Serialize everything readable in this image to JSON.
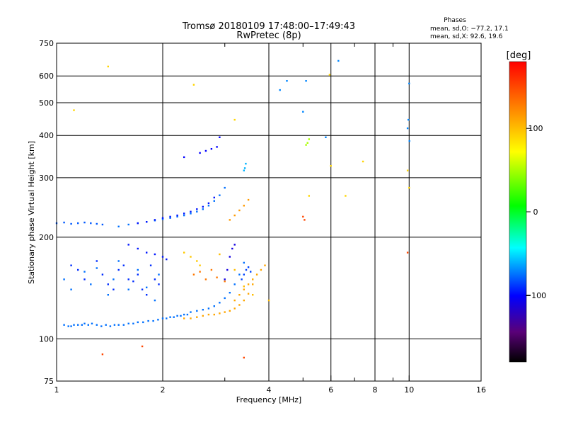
{
  "chart_data": {
    "type": "scatter",
    "title": "Tromsø 20180109 17:48:00–17:49:43",
    "subtitle": "RwPretec (8p)",
    "xlabel": "Frequency [MHz]",
    "ylabel": "Stationary phase Virtual Height [km]",
    "x_scale": "log",
    "y_scale": "log",
    "xlim": [
      1,
      16
    ],
    "ylim": [
      75,
      750
    ],
    "x_ticks": [
      1,
      2,
      4,
      6,
      8,
      10,
      16
    ],
    "x_minor_ticks": [
      3,
      5,
      7,
      9
    ],
    "y_ticks": [
      75,
      100,
      200,
      300,
      400,
      500,
      600,
      750
    ],
    "grid": true,
    "phases_info": {
      "title": "Phases",
      "line_o": "mean, sd,O: −77.2, 17.1",
      "line_x": "mean, sd,X:  92.6, 19.6"
    },
    "colorbar": {
      "label": "[deg]",
      "range": [
        -180,
        180
      ],
      "ticks": [
        100,
        0,
        -100
      ]
    },
    "series": [
      {
        "x": [
          1.05,
          1.08,
          1.1,
          1.12,
          1.15,
          1.18,
          1.2,
          1.23,
          1.26,
          1.3,
          1.34,
          1.38,
          1.42,
          1.46,
          1.5,
          1.55,
          1.6,
          1.65,
          1.7,
          1.76,
          1.82,
          1.88,
          1.94,
          2.0,
          2.05,
          2.1,
          2.15,
          2.2,
          2.25,
          2.3,
          2.35
        ],
        "y": [
          110,
          109,
          109,
          110,
          110,
          110,
          111,
          110,
          111,
          110,
          109,
          110,
          109,
          110,
          110,
          110,
          111,
          111,
          112,
          112,
          113,
          113,
          114,
          115,
          115,
          116,
          116,
          117,
          117,
          118,
          118
        ],
        "phase": -75
      },
      {
        "x": [
          2.4,
          2.5,
          2.6,
          2.7,
          2.8,
          2.9,
          3.0,
          3.1,
          3.2,
          3.3,
          3.4
        ],
        "y": [
          120,
          121,
          122,
          123,
          125,
          128,
          132,
          137,
          145,
          155,
          168
        ],
        "phase": -75
      },
      {
        "x": [
          2.3,
          2.4,
          2.5,
          2.6,
          2.7,
          2.8,
          2.9,
          3.0,
          3.1,
          3.2,
          3.3,
          3.4,
          3.5,
          3.6
        ],
        "y": [
          115,
          115,
          116,
          117,
          118,
          118,
          119,
          120,
          121,
          123,
          126,
          130,
          136,
          145
        ],
        "phase": 110
      },
      {
        "x": [
          3.2,
          3.3,
          3.4,
          3.5,
          3.6,
          3.7,
          3.8,
          3.9
        ],
        "y": [
          130,
          135,
          140,
          145,
          150,
          155,
          160,
          165
        ],
        "phase": 110
      },
      {
        "x": [
          1.5,
          1.6,
          1.7,
          1.8,
          1.9,
          2.0,
          2.1,
          2.2,
          2.3,
          2.4,
          2.5,
          2.6,
          2.7,
          2.8,
          2.9,
          3.0
        ],
        "y": [
          215,
          218,
          220,
          222,
          224,
          226,
          228,
          230,
          232,
          235,
          238,
          242,
          248,
          256,
          266,
          280
        ],
        "phase": -75
      },
      {
        "x": [
          1.7,
          1.8,
          1.9,
          2.0,
          2.1,
          2.2,
          2.3,
          2.4,
          2.5,
          2.6,
          2.7,
          2.8
        ],
        "y": [
          220,
          222,
          225,
          228,
          230,
          232,
          235,
          238,
          242,
          246,
          252,
          262
        ],
        "phase": -95
      },
      {
        "x": [
          3.1,
          3.2,
          3.3,
          3.4,
          3.5
        ],
        "y": [
          225,
          232,
          240,
          248,
          258
        ],
        "phase": 115
      },
      {
        "x": [
          1.0,
          1.05,
          1.1,
          1.15,
          1.2,
          1.25,
          1.3,
          1.35
        ],
        "y": [
          220,
          221,
          219,
          220,
          221,
          220,
          219,
          218
        ],
        "phase": -80
      },
      {
        "x": [
          1.1,
          1.15,
          1.2,
          1.3,
          1.35,
          1.4,
          1.45,
          1.5,
          1.55,
          1.6,
          1.65,
          1.7,
          1.75,
          1.8,
          1.85,
          1.9,
          1.95
        ],
        "y": [
          165,
          160,
          150,
          170,
          155,
          145,
          140,
          160,
          165,
          150,
          148,
          155,
          140,
          135,
          165,
          150,
          145
        ],
        "phase": -90
      },
      {
        "x": [
          1.05,
          1.1,
          1.2,
          1.25,
          1.3,
          1.4,
          1.45,
          1.5,
          1.6,
          1.7,
          1.8,
          1.9,
          1.95
        ],
        "y": [
          150,
          140,
          158,
          145,
          162,
          135,
          150,
          170,
          140,
          160,
          142,
          130,
          155
        ],
        "phase": -75
      },
      {
        "x": [
          1.6,
          1.7,
          1.8,
          1.9,
          2.0,
          2.05
        ],
        "y": [
          190,
          185,
          180,
          178,
          175,
          172
        ],
        "phase": -95
      },
      {
        "x": [
          2.45,
          2.55,
          2.65,
          2.75,
          2.85,
          3.0
        ],
        "y": [
          155,
          158,
          150,
          160,
          152,
          148
        ],
        "phase": 130
      },
      {
        "x": [
          2.3,
          2.4,
          2.5,
          2.55
        ],
        "y": [
          180,
          175,
          170,
          165
        ],
        "phase": 95
      },
      {
        "x": [
          3.0,
          3.05,
          3.1,
          3.15,
          3.2
        ],
        "y": [
          150,
          160,
          175,
          185,
          190
        ],
        "phase": -110
      },
      {
        "x": [
          3.35,
          3.4,
          3.45,
          3.5,
          3.55
        ],
        "y": [
          150,
          155,
          160,
          163,
          158
        ],
        "phase": -85
      },
      {
        "x": [
          2.3,
          2.55,
          2.65,
          2.75,
          2.85,
          2.9
        ],
        "y": [
          345,
          355,
          360,
          365,
          370,
          395
        ],
        "phase": -100
      },
      {
        "x": [
          3.4,
          3.42,
          3.44
        ],
        "y": [
          315,
          320,
          330
        ],
        "phase": -60
      },
      {
        "x": [
          5.1,
          5.15,
          5.2
        ],
        "y": [
          375,
          380,
          390
        ],
        "phase": 50
      },
      {
        "x": [
          4.3,
          4.5,
          5.0,
          5.1,
          5.8,
          6.3,
          9.9,
          9.95,
          10.0,
          10.02
        ],
        "y": [
          545,
          580,
          470,
          580,
          395,
          665,
          420,
          445,
          570,
          385
        ],
        "phase": -70
      },
      {
        "x": [
          1.12,
          1.4,
          2.45,
          3.2,
          5.2,
          5.95,
          6.0,
          6.6,
          7.4,
          9.9,
          10.0
        ],
        "y": [
          475,
          640,
          565,
          445,
          265,
          605,
          325,
          265,
          335,
          315,
          280
        ],
        "phase": 90
      },
      {
        "x": [
          2.9,
          3.2,
          3.4,
          3.6,
          4.0
        ],
        "y": [
          178,
          160,
          143,
          135,
          130
        ],
        "phase": 100
      },
      {
        "x": [
          1.35,
          1.75,
          3.4,
          5.0,
          5.05,
          9.9
        ],
        "y": [
          90,
          95,
          88,
          230,
          225,
          180
        ],
        "phase": 150
      }
    ]
  }
}
